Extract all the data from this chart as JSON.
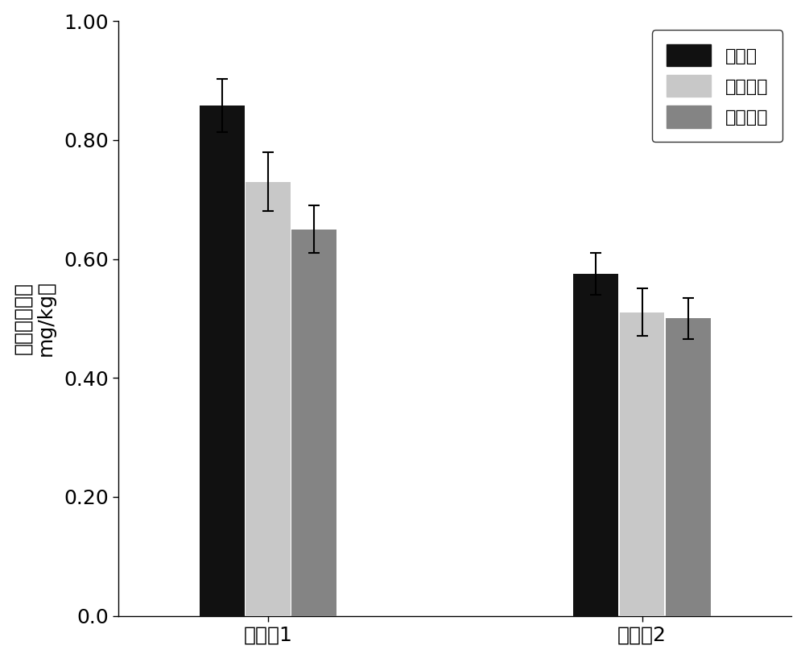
{
  "groups": [
    "实施例1",
    "实施例2"
  ],
  "series": [
    "种植前",
    "油菜收获",
    "水稻收获"
  ],
  "values": [
    [
      0.858,
      0.73,
      0.65
    ],
    [
      0.575,
      0.51,
      0.5
    ]
  ],
  "errors": [
    [
      0.045,
      0.05,
      0.04
    ],
    [
      0.035,
      0.04,
      0.035
    ]
  ],
  "colors": [
    "#111111",
    "#c8c8c8",
    "#848484"
  ],
  "ylabel_line1": "土壤镉含量（",
  "ylabel_line2": "mg/kg）",
  "ylim": [
    0.0,
    1.0
  ],
  "yticks": [
    0.0,
    0.2,
    0.4,
    0.6,
    0.8,
    1.0
  ],
  "bar_width": 0.18,
  "group_positions": [
    1.0,
    2.5
  ],
  "xlim": [
    0.4,
    3.1
  ],
  "legend_labels": [
    "种植前",
    "油菜收获",
    "水稻收获"
  ],
  "figsize": [
    10.0,
    8.17
  ],
  "dpi": 100,
  "fontsize_tick": 18,
  "fontsize_ylabel": 18,
  "fontsize_legend": 16,
  "error_capsize": 5,
  "error_linewidth": 1.5
}
